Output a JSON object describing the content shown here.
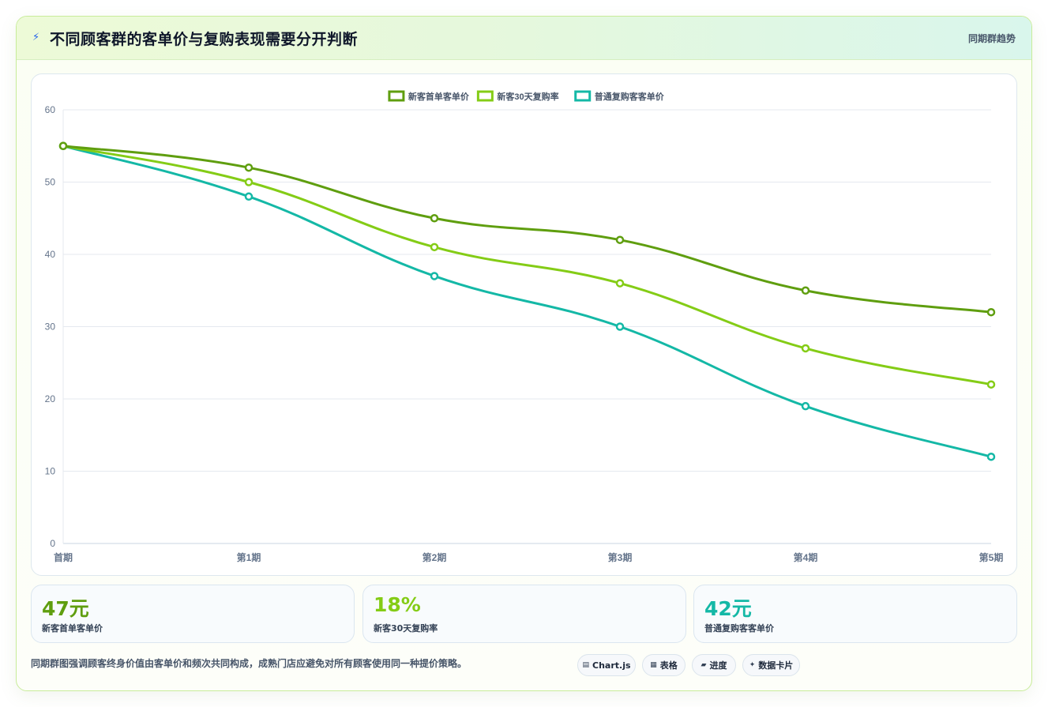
{
  "header": {
    "icon": "lightning-icon",
    "title": "不同顾客群的客单价与复购表现需要分开判断",
    "right_label": "同期群趋势"
  },
  "colors": {
    "series_dark_green": "#5f9e0f",
    "series_light_green": "#84cc16",
    "series_teal": "#14b8a6",
    "accent_border": "#c8ec9a"
  },
  "chart_data": {
    "type": "line",
    "title": "",
    "xlabel": "",
    "ylabel": "",
    "categories": [
      "首期",
      "第1期",
      "第2期",
      "第3期",
      "第4期",
      "第5期"
    ],
    "ylim": [
      0,
      60
    ],
    "yticks": [
      0,
      10,
      20,
      30,
      40,
      50,
      60
    ],
    "grid": true,
    "legend_position": "top-center",
    "series": [
      {
        "name": "新客首单客单价",
        "color": "#5f9e0f",
        "values": [
          55,
          52,
          45,
          42,
          35,
          32
        ]
      },
      {
        "name": "新客30天复购率",
        "color": "#84cc16",
        "values": [
          55,
          50,
          41,
          36,
          27,
          22
        ]
      },
      {
        "name": "普通复购客客单价",
        "color": "#14b8a6",
        "values": [
          55,
          48,
          37,
          30,
          19,
          12
        ]
      }
    ]
  },
  "kpis": [
    {
      "value": "47元",
      "label": "新客首单客单价",
      "color": "#5f9e0f"
    },
    {
      "value": "18%",
      "label": "新客30天复购率",
      "color": "#84cc16"
    },
    {
      "value": "42元",
      "label": "普通复购客客单价",
      "color": "#14b8a6"
    }
  ],
  "footnote": "同期群图强调顾客终身价值由客单价和频次共同构成，成熟门店应避免对所有顾客使用同一种提价策略。",
  "chips": [
    {
      "icon": "chart-icon",
      "glyph": "▤",
      "label": "Chart.js"
    },
    {
      "icon": "table-icon",
      "glyph": "▦",
      "label": "表格"
    },
    {
      "icon": "progress-icon",
      "glyph": "▰",
      "label": "进度"
    },
    {
      "icon": "sparkle-icon",
      "glyph": "✦",
      "label": "数据卡片"
    }
  ]
}
